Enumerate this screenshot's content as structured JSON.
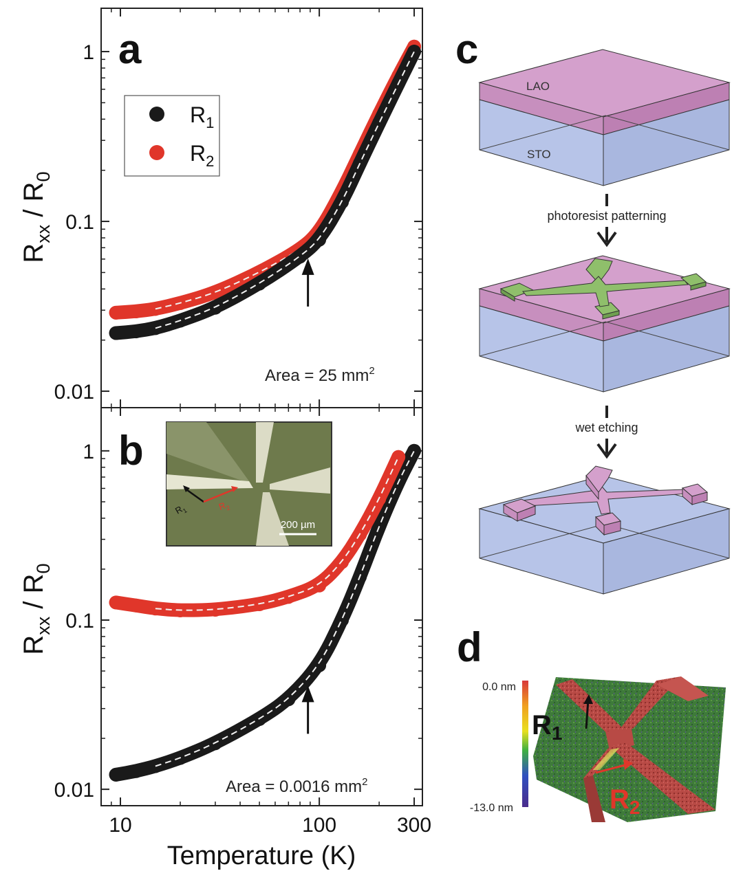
{
  "panels": {
    "a": "a",
    "b": "b",
    "c": "c",
    "d": "d"
  },
  "colors": {
    "r1": "#1a1a1a",
    "r2": "#e0362a",
    "fit": "#f2f2f2",
    "lao": "#d4a0cc",
    "sto": "#b7c4e8",
    "photoresist": "#8fbf6b"
  },
  "legend": {
    "r1": "R",
    "r1_sub": "1",
    "r2": "R",
    "r2_sub": "2"
  },
  "chart_data": [
    {
      "id": "a",
      "type": "scatter",
      "xscale": "log",
      "yscale": "log",
      "xlim": [
        8,
        330
      ],
      "ylim": [
        0.008,
        1.8
      ],
      "xlabel": "",
      "ylabel_main": "R",
      "ylabel_sub": "xx",
      "ylabel_rest": " / R",
      "ylabel_sub2": "0",
      "yticks": [
        {
          "v": 0.01,
          "label": "0.01"
        },
        {
          "v": 0.1,
          "label": "0.1"
        },
        {
          "v": 1,
          "label": "1"
        }
      ],
      "xticks": [
        {
          "v": 10,
          "label": ""
        },
        {
          "v": 100,
          "label": ""
        },
        {
          "v": 300,
          "label": ""
        }
      ],
      "annotation": "Area = 25 mm",
      "annotation_sup": "2",
      "arrow_x": 92,
      "series": [
        {
          "name": "R1",
          "x": [
            9.5,
            12,
            15,
            20,
            30,
            50,
            80,
            100,
            130,
            160,
            200,
            250,
            300
          ],
          "y": [
            0.022,
            0.0225,
            0.0235,
            0.026,
            0.031,
            0.043,
            0.062,
            0.078,
            0.13,
            0.22,
            0.38,
            0.65,
            1.0
          ]
        },
        {
          "name": "R2",
          "x": [
            9.5,
            12,
            15,
            20,
            30,
            50,
            80,
            100,
            130,
            160,
            200,
            250,
            300
          ],
          "y": [
            0.029,
            0.0295,
            0.0305,
            0.033,
            0.038,
            0.05,
            0.068,
            0.086,
            0.15,
            0.25,
            0.43,
            0.72,
            1.07
          ]
        }
      ]
    },
    {
      "id": "b",
      "type": "scatter",
      "xscale": "log",
      "yscale": "log",
      "xlim": [
        8,
        330
      ],
      "ylim": [
        0.008,
        1.8
      ],
      "xlabel": "Temperature (K)",
      "ylabel_main": "R",
      "ylabel_sub": "xx",
      "ylabel_rest": " / R",
      "ylabel_sub2": "0",
      "yticks": [
        {
          "v": 0.01,
          "label": "0.01"
        },
        {
          "v": 0.1,
          "label": "0.1"
        },
        {
          "v": 1,
          "label": "1"
        }
      ],
      "xticks": [
        {
          "v": 10,
          "label": "10"
        },
        {
          "v": 100,
          "label": "100"
        },
        {
          "v": 300,
          "label": "300"
        }
      ],
      "annotation": "Area = 0.0016 mm",
      "annotation_sup": "2",
      "arrow_x": 92,
      "series": [
        {
          "name": "R1",
          "x": [
            9.5,
            12,
            15,
            20,
            30,
            50,
            70,
            100,
            130,
            160,
            200,
            250,
            300
          ],
          "y": [
            0.0122,
            0.0128,
            0.0137,
            0.0153,
            0.0187,
            0.026,
            0.034,
            0.054,
            0.1,
            0.18,
            0.36,
            0.66,
            1.0
          ]
        },
        {
          "name": "R2",
          "x": [
            9.5,
            12,
            15,
            20,
            30,
            50,
            70,
            100,
            130,
            160,
            200,
            250
          ],
          "y": [
            0.127,
            0.122,
            0.117,
            0.114,
            0.115,
            0.124,
            0.137,
            0.16,
            0.22,
            0.32,
            0.52,
            0.92
          ]
        }
      ]
    }
  ],
  "inset": {
    "r1": "R",
    "r1_sub": "1",
    "r2": "R",
    "r2_sub": "2",
    "scale": "200 µm"
  },
  "schematic": {
    "lao": "LAO",
    "sto": "STO",
    "step1": "photoresist patterning",
    "step2": "wet etching"
  },
  "afm": {
    "top": "0.0 nm",
    "bottom": "-13.0 nm",
    "r1": "R",
    "r1_sub": "1",
    "r2": "R",
    "r2_sub": "2"
  }
}
